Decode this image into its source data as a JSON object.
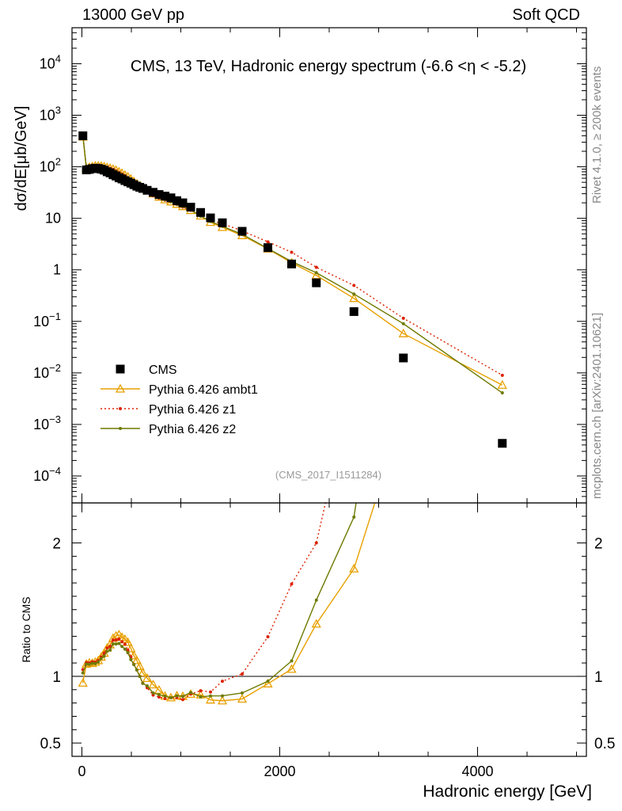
{
  "header": {
    "left": "13000 GeV pp",
    "right": "Soft QCD"
  },
  "side_labels": {
    "rivet": "Rivet 4.1.0, ≥ 200k events",
    "source": "mcplots.cern.ch [arXiv:2401.10621]"
  },
  "chart_data": {
    "type": "line",
    "title": "CMS, 13 TeV, Hadronic energy spectrum (-6.6 <η < -5.2)",
    "watermark": "(CMS_2017_I1511284)",
    "xlabel": "Hadronic energy [GeV]",
    "ylabel": "dσ/dE[μb/GeV]",
    "ratio_ylabel": "Ratio to CMS",
    "xlim": [
      -100,
      5100
    ],
    "ylim": [
      3e-05,
      50000
    ],
    "ratio_ylim": [
      0.4,
      2.3
    ],
    "x_ticks": [
      "0",
      "2000",
      "4000"
    ],
    "y_ticks": [
      {
        "v": 0.0001,
        "b": "10",
        "e": "−4"
      },
      {
        "v": 0.001,
        "b": "10",
        "e": "−3"
      },
      {
        "v": 0.01,
        "b": "10",
        "e": "−2"
      },
      {
        "v": 0.1,
        "b": "10",
        "e": "−1"
      },
      {
        "v": 1,
        "b": "1",
        "e": ""
      },
      {
        "v": 10,
        "b": "10",
        "e": ""
      },
      {
        "v": 100,
        "b": "10",
        "e": "2"
      },
      {
        "v": 1000,
        "b": "10",
        "e": "3"
      },
      {
        "v": 10000,
        "b": "10",
        "e": "4"
      }
    ],
    "ratio_ticks": [
      {
        "v": 0.5,
        "label": "0.5"
      },
      {
        "v": 1,
        "label": "1"
      },
      {
        "v": 2,
        "label": "2"
      }
    ],
    "x": [
      10,
      45,
      75,
      105,
      135,
      165,
      195,
      225,
      255,
      285,
      315,
      345,
      375,
      405,
      435,
      465,
      495,
      525,
      555,
      585,
      615,
      660,
      720,
      780,
      840,
      900,
      960,
      1020,
      1100,
      1200,
      1300,
      1420,
      1620,
      1880,
      2120,
      2370,
      2750,
      3250,
      4250
    ],
    "series": [
      {
        "name": "CMS",
        "color": "#000000",
        "marker": "square",
        "values": [
          400,
          87,
          89,
          92,
          94,
          93,
          90,
          86,
          80,
          76,
          70,
          66,
          61,
          58,
          54,
          51,
          48,
          45,
          42,
          40,
          38,
          35,
          32,
          29,
          27,
          25,
          22,
          20,
          16.5,
          13,
          10.2,
          8.2,
          5.6,
          2.7,
          1.3,
          0.56,
          0.155,
          0.0195,
          0.00043
        ]
      },
      {
        "name": "Pythia 6.426 ambt1",
        "color": "#e8a000",
        "marker": "triangle",
        "values": [
          380,
          95,
          98,
          101,
          104,
          104,
          103,
          101,
          97,
          94,
          90,
          86,
          80,
          75,
          69,
          64,
          58,
          52,
          47,
          43,
          39,
          34.5,
          30,
          26,
          23,
          21,
          18.8,
          17,
          14.3,
          11.2,
          8.4,
          6.7,
          4.65,
          2.55,
          1.37,
          0.78,
          0.28,
          0.058,
          0.0058
        ]
      },
      {
        "name": "Pythia 6.426 z1",
        "color": "#dd2200",
        "marker": "dot",
        "values": [
          420,
          96,
          98,
          102,
          104,
          104,
          103,
          101,
          97,
          93,
          89,
          84,
          78,
          73,
          67,
          61,
          55,
          49,
          44,
          40,
          36,
          32,
          27.5,
          24.5,
          22.5,
          21,
          18.5,
          16.5,
          14.3,
          11.6,
          9.0,
          7.9,
          5.7,
          3.5,
          2.2,
          1.12,
          0.5,
          0.115,
          0.009
        ]
      },
      {
        "name": "Pythia 6.426 z2",
        "color": "#6e7a00",
        "marker": "dot",
        "values": [
          410,
          95,
          97,
          101,
          103,
          103,
          102,
          99,
          95,
          91,
          87,
          82,
          76,
          71,
          65,
          60,
          54,
          49,
          44,
          40,
          36,
          32.5,
          28,
          25,
          23,
          21,
          18.8,
          17,
          14.5,
          11,
          8.7,
          7.0,
          4.9,
          2.6,
          1.45,
          0.88,
          0.34,
          0.09,
          0.0041
        ]
      }
    ]
  }
}
